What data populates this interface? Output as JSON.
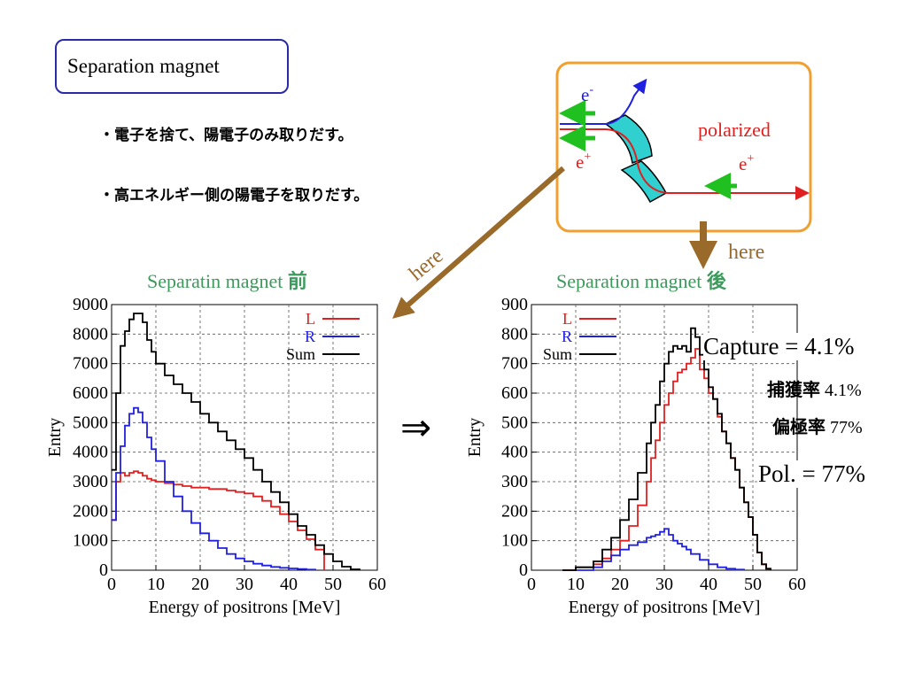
{
  "page_title": "Separation magnet",
  "bullets": [
    "・電子を捨て、陽電子のみ取りだす。",
    "・高エネルギー側の陽電子を取りだす。"
  ],
  "diagram": {
    "electron": "e",
    "electron_sup": "-",
    "positron": "e",
    "positron_sup": "+",
    "polarized": "polarized",
    "positron2": "e",
    "positron2_sup": "+"
  },
  "here_labels": [
    "here",
    "here"
  ],
  "implies_symbol": "⇒",
  "annotations": {
    "capture": "Capture = 4.1%",
    "capture_jp_label": "捕獲率",
    "capture_jp_value": "4.1%",
    "pol_jp_label": "偏極率",
    "pol_jp_value": "77%",
    "pol": "Pol. = 77%"
  },
  "colors": {
    "L": "#e02020",
    "R": "#2020e0",
    "Sum": "#000000",
    "title_green": "#3c9a5c",
    "arrow_brown": "#9a6a2a",
    "frame_orange": "#f0a030",
    "magnet_teal": "#30d0d0"
  },
  "chart_data": [
    {
      "type": "line",
      "title": "Separatin magnet",
      "title_suffix": "前",
      "xlabel": "Energy of positrons [MeV]",
      "ylabel": "Entry",
      "xlim": [
        0,
        60
      ],
      "ylim": [
        0,
        9000
      ],
      "xticks": [
        0,
        10,
        20,
        30,
        40,
        50,
        60
      ],
      "yticks": [
        0,
        1000,
        2000,
        3000,
        4000,
        5000,
        6000,
        7000,
        8000,
        9000
      ],
      "grid": true,
      "legend": "top-right",
      "series": [
        {
          "name": "L",
          "color": "#e02020",
          "x": [
            0,
            1,
            2,
            3,
            4,
            5,
            6,
            7,
            8,
            9,
            10,
            12,
            14,
            16,
            18,
            20,
            22,
            24,
            26,
            28,
            30,
            32,
            34,
            36,
            38,
            40,
            42,
            44,
            46,
            48
          ],
          "y": [
            1700,
            3000,
            3300,
            3200,
            3300,
            3350,
            3300,
            3200,
            3100,
            3050,
            3000,
            2950,
            2900,
            2850,
            2800,
            2800,
            2750,
            2750,
            2700,
            2650,
            2600,
            2500,
            2350,
            2150,
            1900,
            1650,
            1350,
            1050,
            700,
            0
          ]
        },
        {
          "name": "R",
          "color": "#2020e0",
          "x": [
            0,
            1,
            2,
            3,
            4,
            5,
            6,
            7,
            8,
            9,
            10,
            12,
            14,
            16,
            18,
            20,
            22,
            24,
            26,
            28,
            30,
            32,
            34,
            36,
            38,
            40,
            42,
            44,
            46
          ],
          "y": [
            1700,
            3300,
            4200,
            4900,
            5300,
            5500,
            5350,
            5000,
            4500,
            4100,
            3700,
            3000,
            2500,
            2000,
            1600,
            1250,
            1000,
            750,
            550,
            400,
            300,
            220,
            160,
            110,
            80,
            60,
            40,
            20,
            0
          ]
        },
        {
          "name": "Sum",
          "color": "#000000",
          "x": [
            0,
            1,
            2,
            3,
            4,
            5,
            6,
            7,
            8,
            9,
            10,
            12,
            14,
            16,
            18,
            20,
            22,
            24,
            26,
            28,
            30,
            32,
            34,
            36,
            38,
            40,
            42,
            44,
            46,
            48,
            50,
            52,
            54,
            56
          ],
          "y": [
            3400,
            6000,
            7600,
            8100,
            8500,
            8700,
            8700,
            8400,
            7800,
            7400,
            7000,
            6600,
            6300,
            6000,
            5700,
            5300,
            5000,
            4700,
            4400,
            4100,
            3800,
            3400,
            3000,
            2650,
            2300,
            1900,
            1500,
            1200,
            850,
            550,
            300,
            120,
            30,
            0
          ]
        }
      ]
    },
    {
      "type": "line",
      "title": "Separation magnet",
      "title_suffix": "後",
      "xlabel": "Energy of positrons [MeV]",
      "ylabel": "Entry",
      "xlim": [
        0,
        60
      ],
      "ylim": [
        0,
        900
      ],
      "xticks": [
        0,
        10,
        20,
        30,
        40,
        50,
        60
      ],
      "yticks": [
        0,
        100,
        200,
        300,
        400,
        500,
        600,
        700,
        800,
        900
      ],
      "grid": true,
      "legend": "top-left",
      "series": [
        {
          "name": "L",
          "color": "#e02020",
          "x": [
            7,
            10,
            14,
            16,
            18,
            20,
            22,
            24,
            26,
            27,
            28,
            29,
            30,
            31,
            32,
            33,
            34,
            35,
            36,
            37,
            38,
            39,
            40,
            41,
            42,
            43,
            44,
            45,
            46,
            47,
            48,
            49,
            50,
            51,
            52,
            53,
            54
          ],
          "y": [
            0,
            10,
            20,
            40,
            70,
            100,
            150,
            220,
            300,
            380,
            440,
            500,
            560,
            600,
            640,
            670,
            680,
            700,
            720,
            750,
            680,
            650,
            600,
            580,
            520,
            470,
            430,
            380,
            340,
            280,
            230,
            180,
            120,
            60,
            20,
            5,
            0
          ]
        },
        {
          "name": "R",
          "color": "#2020e0",
          "x": [
            10,
            14,
            16,
            18,
            20,
            22,
            24,
            26,
            27,
            28,
            29,
            30,
            31,
            32,
            33,
            34,
            35,
            36,
            38,
            40,
            42,
            44,
            46,
            48
          ],
          "y": [
            0,
            10,
            30,
            50,
            70,
            85,
            95,
            110,
            115,
            120,
            130,
            140,
            120,
            100,
            90,
            80,
            70,
            55,
            35,
            20,
            10,
            5,
            2,
            0
          ]
        },
        {
          "name": "Sum",
          "color": "#000000",
          "x": [
            7,
            10,
            14,
            16,
            18,
            20,
            22,
            24,
            26,
            27,
            28,
            29,
            30,
            31,
            32,
            33,
            34,
            35,
            36,
            37,
            38,
            39,
            40,
            41,
            42,
            43,
            44,
            45,
            46,
            47,
            48,
            49,
            50,
            51,
            52,
            53,
            54
          ],
          "y": [
            0,
            10,
            30,
            70,
            110,
            170,
            240,
            330,
            430,
            500,
            560,
            640,
            700,
            740,
            760,
            750,
            760,
            740,
            820,
            790,
            730,
            680,
            620,
            580,
            530,
            470,
            430,
            380,
            340,
            280,
            230,
            180,
            120,
            60,
            20,
            5,
            0
          ]
        }
      ]
    }
  ]
}
